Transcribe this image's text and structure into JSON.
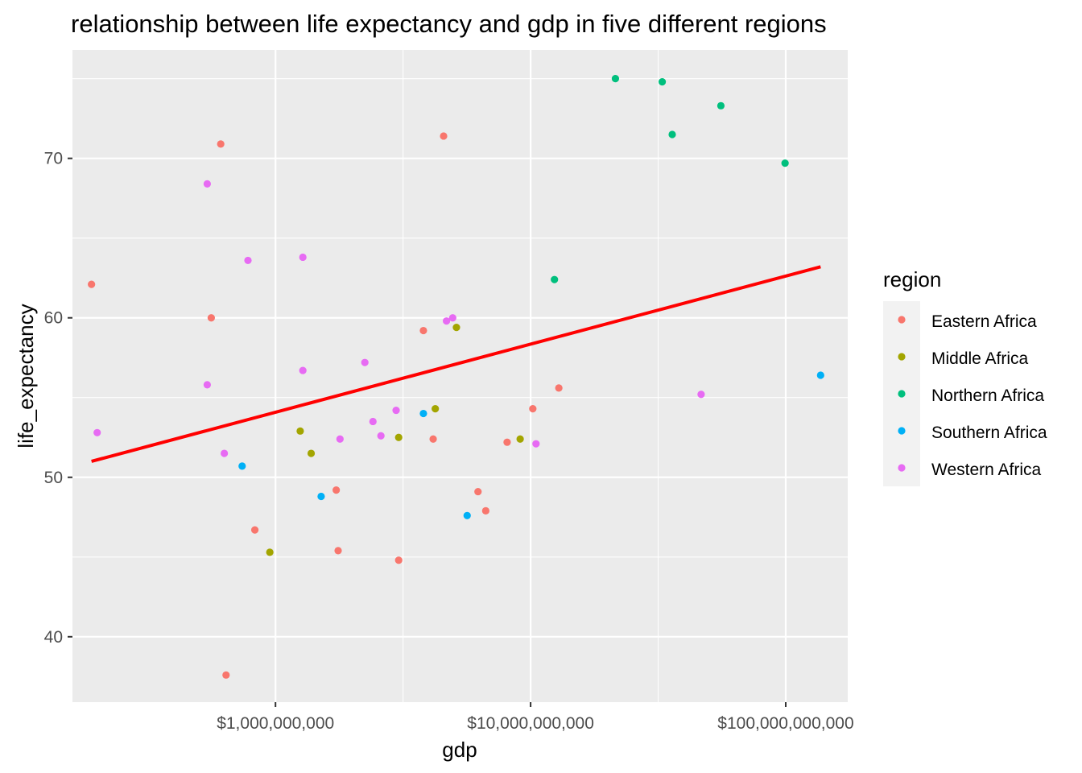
{
  "chart_data": {
    "type": "scatter",
    "title": "relationship between life expectancy and gdp in five different regions",
    "xlabel": "gdp",
    "ylabel": "life_expectancy",
    "x_scale": "log10",
    "xlim": [
      160000000,
      175000000000
    ],
    "ylim": [
      35.9,
      76.8
    ],
    "x_ticks": [
      {
        "value": 1000000000,
        "label": "$1,000,000,000"
      },
      {
        "value": 10000000000,
        "label": "$10,000,000,000"
      },
      {
        "value": 100000000000,
        "label": "$100,000,000,000"
      }
    ],
    "y_ticks": [
      {
        "value": 40,
        "label": "40"
      },
      {
        "value": 50,
        "label": "50"
      },
      {
        "value": 60,
        "label": "60"
      },
      {
        "value": 70,
        "label": "70"
      }
    ],
    "grid": true,
    "legend": {
      "title": "region",
      "position": "right"
    },
    "colors": {
      "Eastern Africa": "#F8766D",
      "Middle Africa": "#A3A500",
      "Northern Africa": "#00BF7D",
      "Southern Africa": "#00B0F6",
      "Western Africa": "#E76BF3",
      "trend": "#FF0000",
      "panel": "#EBEBEB",
      "grid": "#FFFFFF"
    },
    "series": [
      {
        "name": "Eastern Africa",
        "points": [
          {
            "x": 190000000,
            "y": 62.1
          },
          {
            "x": 610000000,
            "y": 70.9
          },
          {
            "x": 560000000,
            "y": 60.0
          },
          {
            "x": 640000000,
            "y": 37.6
          },
          {
            "x": 830000000,
            "y": 46.7
          },
          {
            "x": 1730000000,
            "y": 49.2
          },
          {
            "x": 1760000000,
            "y": 45.4
          },
          {
            "x": 3040000000,
            "y": 44.8
          },
          {
            "x": 3800000000,
            "y": 59.2
          },
          {
            "x": 4150000000,
            "y": 52.4
          },
          {
            "x": 4560000000,
            "y": 71.4
          },
          {
            "x": 6220000000,
            "y": 49.1
          },
          {
            "x": 6670000000,
            "y": 47.9
          },
          {
            "x": 8090000000,
            "y": 52.2
          },
          {
            "x": 10200000000,
            "y": 54.3
          },
          {
            "x": 12900000000,
            "y": 55.6
          }
        ]
      },
      {
        "name": "Middle Africa",
        "points": [
          {
            "x": 950000000,
            "y": 45.3
          },
          {
            "x": 1250000000,
            "y": 52.9
          },
          {
            "x": 1380000000,
            "y": 51.5
          },
          {
            "x": 3040000000,
            "y": 52.5
          },
          {
            "x": 4230000000,
            "y": 54.3
          },
          {
            "x": 5120000000,
            "y": 59.4
          },
          {
            "x": 9100000000,
            "y": 52.4
          }
        ]
      },
      {
        "name": "Northern Africa",
        "points": [
          {
            "x": 12400000000,
            "y": 62.4
          },
          {
            "x": 21500000000,
            "y": 75.0
          },
          {
            "x": 32800000000,
            "y": 74.8
          },
          {
            "x": 35900000000,
            "y": 71.5
          },
          {
            "x": 55700000000,
            "y": 73.3
          },
          {
            "x": 99400000000,
            "y": 69.7
          }
        ]
      },
      {
        "name": "Southern Africa",
        "points": [
          {
            "x": 740000000,
            "y": 50.7
          },
          {
            "x": 1510000000,
            "y": 48.8
          },
          {
            "x": 3800000000,
            "y": 54.0
          },
          {
            "x": 5640000000,
            "y": 47.6
          },
          {
            "x": 137000000000,
            "y": 56.4
          }
        ]
      },
      {
        "name": "Western Africa",
        "points": [
          {
            "x": 200000000,
            "y": 52.8
          },
          {
            "x": 540000000,
            "y": 68.4
          },
          {
            "x": 540000000,
            "y": 55.8
          },
          {
            "x": 630000000,
            "y": 51.5
          },
          {
            "x": 780000000,
            "y": 63.6
          },
          {
            "x": 1280000000,
            "y": 63.8
          },
          {
            "x": 1280000000,
            "y": 56.7
          },
          {
            "x": 1790000000,
            "y": 52.4
          },
          {
            "x": 2240000000,
            "y": 57.2
          },
          {
            "x": 2410000000,
            "y": 53.5
          },
          {
            "x": 2590000000,
            "y": 52.6
          },
          {
            "x": 2970000000,
            "y": 54.2
          },
          {
            "x": 4680000000,
            "y": 59.8
          },
          {
            "x": 4950000000,
            "y": 60.0
          },
          {
            "x": 10500000000,
            "y": 52.1
          },
          {
            "x": 46600000000,
            "y": 55.2
          }
        ]
      }
    ],
    "trend_line": {
      "type": "linear fit on log10(gdp)",
      "points": [
        {
          "x": 190000000,
          "y": 51.0
        },
        {
          "x": 137000000000,
          "y": 63.2
        }
      ]
    }
  }
}
